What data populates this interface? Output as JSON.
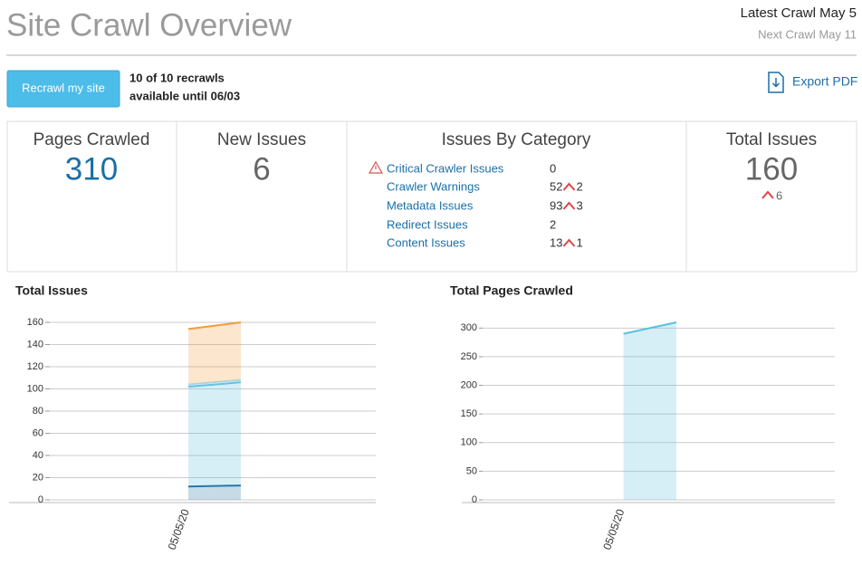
{
  "header": {
    "title": "Site Crawl Overview",
    "latest_crawl": "Latest Crawl May 5",
    "next_crawl": "Next Crawl May 11"
  },
  "recrawl": {
    "button": "Recrawl my site",
    "info_line1": "10 of 10 recrawls",
    "info_line2": "available until 06/03"
  },
  "export": "Export PDF",
  "stats": [
    {
      "label": "Pages Crawled",
      "value": 310
    },
    {
      "label": "New Issues",
      "value": 6
    },
    {
      "label": "Total Issues",
      "value": 160,
      "change": 6
    }
  ],
  "issues_by_category": {
    "title": "Issues By Category",
    "rows": [
      {
        "name": "Critical Crawler Issues",
        "count": 0
      },
      {
        "name": "Crawler Warnings",
        "count": 52,
        "change": 2
      },
      {
        "name": "Metadata Issues",
        "count": 93,
        "change": 3
      },
      {
        "name": "Redirect Issues",
        "count": 2
      },
      {
        "name": "Content Issues",
        "count": 13,
        "change": 1
      }
    ]
  },
  "chart_data": [
    {
      "type": "stacked_area",
      "title": "Total Issues",
      "categories": [
        "05/05/20",
        null
      ],
      "series": [
        {
          "color": "#1f6f9f",
          "values": [
            12,
            13
          ]
        },
        {
          "color": "#5bc0de",
          "values": [
            90,
            93
          ]
        },
        {
          "color": "#a8dcee",
          "values": [
            2,
            2
          ]
        },
        {
          "color": "#f39c3c",
          "values": [
            50,
            52
          ]
        }
      ],
      "ylim": [
        0,
        160
      ],
      "yticks": [
        0,
        20,
        40,
        60,
        80,
        100,
        120,
        140,
        160
      ],
      "grid": true
    },
    {
      "type": "stacked_area",
      "title": "Total Pages Crawled",
      "categories": [
        "05/05/20",
        null
      ],
      "series": [
        {
          "color": "#5bc0de",
          "values": [
            290,
            310
          ]
        }
      ],
      "ylim": [
        0,
        310
      ],
      "yticks": [
        0,
        50,
        100,
        150,
        200,
        250,
        300
      ],
      "grid": true
    }
  ]
}
